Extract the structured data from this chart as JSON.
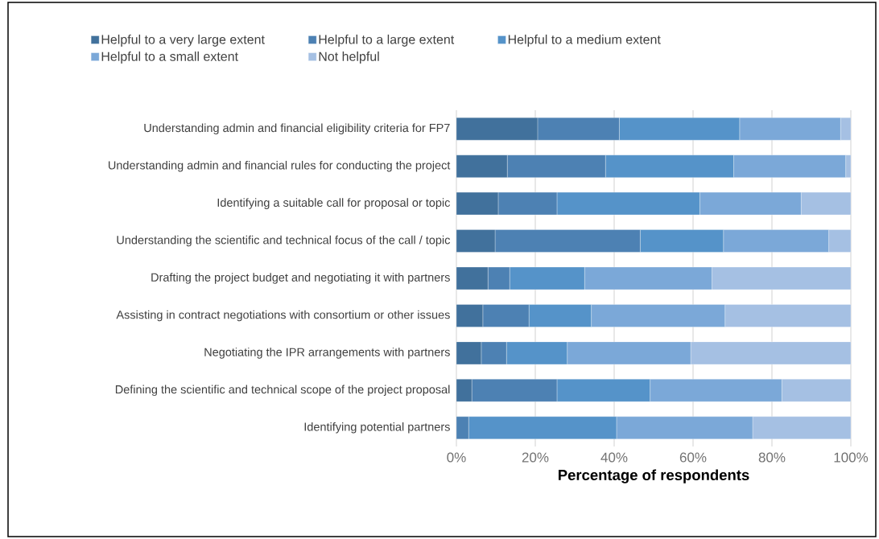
{
  "chart_data": {
    "type": "bar",
    "orientation": "horizontal",
    "stacked": true,
    "xlabel": "Percentage of respondents",
    "categories": [
      "Understanding admin and financial eligibility criteria for FP7",
      "Understanding admin and financial rules for conducting the project",
      "Identifying a suitable call for proposal or topic",
      "Understanding the scientific and technical focus of the call / topic",
      "Drafting the project budget and negotiating it with partners",
      "Assisting in contract negotiations with consortium or other issues",
      "Negotiating the IPR arrangements with partners",
      "Defining the scientific and technical scope of the project proposal",
      "Identifying potential partners"
    ],
    "series": [
      {
        "name": "Helpful to a very large extent",
        "color": "#41719c",
        "values": [
          20.6,
          12.9,
          10.6,
          9.8,
          8.0,
          6.7,
          6.3,
          3.9,
          0
        ]
      },
      {
        "name": "Helpful to a large extent",
        "color": "#4d81b3",
        "values": [
          20.7,
          24.9,
          14.9,
          36.8,
          5.5,
          11.7,
          6.4,
          21.6,
          3.1
        ]
      },
      {
        "name": "Helpful to a medium extent",
        "color": "#5593c9",
        "values": [
          30.5,
          32.5,
          36.2,
          21.1,
          19.0,
          15.8,
          15.4,
          23.6,
          37.5
        ]
      },
      {
        "name": "Helpful to a small extent",
        "color": "#7ba8d8",
        "values": [
          25.6,
          28.4,
          25.7,
          26.7,
          32.3,
          33.9,
          31.3,
          33.4,
          34.5
        ]
      },
      {
        "name": "Not helpful",
        "color": "#a5c0e3",
        "values": [
          2.6,
          1.3,
          12.6,
          5.6,
          35.2,
          31.9,
          40.6,
          17.5,
          24.9
        ]
      }
    ],
    "xlim": [
      0,
      100
    ],
    "xticks": [
      {
        "value": 0,
        "label": "0%"
      },
      {
        "value": 20,
        "label": "20%"
      },
      {
        "value": 40,
        "label": "40%"
      },
      {
        "value": 60,
        "label": "60%"
      },
      {
        "value": 80,
        "label": "80%"
      },
      {
        "value": 100,
        "label": "100%"
      }
    ],
    "grid": "x",
    "legend": "top"
  }
}
